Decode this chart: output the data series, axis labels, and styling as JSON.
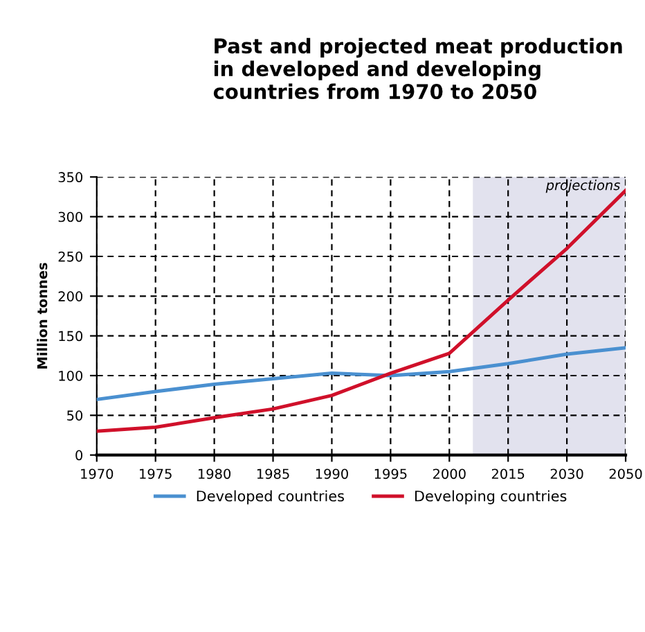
{
  "chart_data": {
    "type": "line",
    "title": "Past and projected meat production\nin developed and developing\ncountries from 1970 to 2050",
    "ylabel": "Million tonnes",
    "categories": [
      "1970",
      "1975",
      "1980",
      "1985",
      "1990",
      "1995",
      "2000",
      "2015",
      "2030",
      "2050"
    ],
    "series": [
      {
        "name": "Developed countries",
        "color": "#4a90d0",
        "values": [
          70,
          80,
          89,
          96,
          103,
          100,
          105,
          115,
          127,
          135
        ]
      },
      {
        "name": "Developing countries",
        "color": "#d0102a",
        "values": [
          30,
          35,
          47,
          58,
          75,
          103,
          128,
          195,
          260,
          333
        ]
      }
    ],
    "ylim": [
      0,
      350
    ],
    "yticks": [
      0,
      50,
      100,
      150,
      200,
      250,
      300,
      350
    ],
    "annotations": [
      "projections"
    ],
    "grid": true,
    "legend": "bottom",
    "marker": "none",
    "line_style": "solid"
  }
}
